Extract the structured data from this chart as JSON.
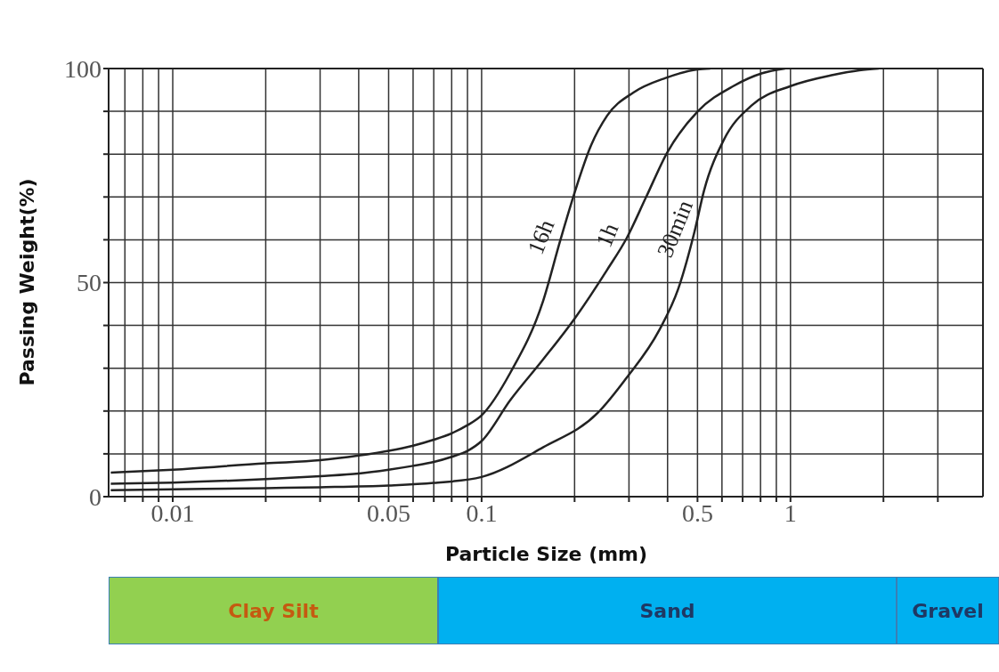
{
  "chart_data": [
    {
      "type": "line",
      "xlabel": "Particle Size (mm)",
      "ylabel": "Passing Weight(%)",
      "log": "x",
      "xlim": [
        0.0062,
        4.2
      ],
      "ylim": [
        0,
        100
      ],
      "xticks": [
        {
          "value": 0.007,
          "label": null
        },
        {
          "value": 0.008,
          "label": null
        },
        {
          "value": 0.009,
          "label": null
        },
        0.01,
        {
          "value": 0.02,
          "label": null
        },
        {
          "value": 0.03,
          "label": null
        },
        {
          "value": 0.04,
          "label": null
        },
        0.05,
        {
          "value": 0.06,
          "label": null
        },
        {
          "value": 0.07,
          "label": null
        },
        {
          "value": 0.08,
          "label": null
        },
        {
          "value": 0.09,
          "label": null
        },
        0.1,
        {
          "value": 0.2,
          "label": null
        },
        {
          "value": 0.3,
          "label": null
        },
        {
          "value": 0.4,
          "label": null
        },
        0.5,
        {
          "value": 0.6,
          "label": null
        },
        {
          "value": 0.7,
          "label": null
        },
        {
          "value": 0.8,
          "label": null
        },
        {
          "value": 0.9,
          "label": null
        },
        1,
        {
          "value": 2,
          "label": null
        },
        {
          "value": 3,
          "label": null
        }
      ],
      "yticks": [
        0,
        {
          "value": 10,
          "label": null
        },
        {
          "value": 20,
          "label": null
        },
        {
          "value": 30,
          "label": null
        },
        {
          "value": 40,
          "label": null
        },
        50,
        {
          "value": 60,
          "label": null
        },
        {
          "value": 70,
          "label": null
        },
        {
          "value": 80,
          "label": null
        },
        {
          "value": 90,
          "label": null
        },
        100
      ],
      "grid": true,
      "series": [
        {
          "name": "16h",
          "color": "#222222",
          "x": [
            0.0063,
            0.01,
            0.02,
            0.03,
            0.04,
            0.05,
            0.06,
            0.07,
            0.08,
            0.09,
            0.1,
            0.124,
            0.158,
            0.18,
            0.201,
            0.226,
            0.255,
            0.31,
            0.394,
            0.5,
            0.55
          ],
          "values": [
            5.6,
            6.3,
            7.8,
            8.5,
            9.6,
            10.7,
            11.9,
            13.3,
            14.8,
            16.7,
            19,
            29,
            45.6,
            60,
            71.5,
            82,
            89,
            94.4,
            97.8,
            99.8,
            100
          ]
        },
        {
          "name": "1h",
          "color": "#222222",
          "x": [
            0.0063,
            0.01,
            0.02,
            0.03,
            0.04,
            0.05,
            0.06,
            0.07,
            0.08,
            0.09,
            0.1,
            0.124,
            0.158,
            0.201,
            0.255,
            0.295,
            0.341,
            0.399,
            0.501,
            0.653,
            0.81,
            0.96
          ],
          "values": [
            3,
            3.3,
            4.1,
            4.8,
            5.4,
            6.3,
            7.2,
            8.1,
            9.3,
            10.7,
            13,
            22.6,
            32,
            41.8,
            53,
            60.4,
            70,
            80.4,
            90,
            95.9,
            98.9,
            100
          ]
        },
        {
          "name": "30min",
          "color": "#222222",
          "x": [
            0.0063,
            0.01,
            0.02,
            0.03,
            0.05,
            0.07,
            0.1,
            0.158,
            0.238,
            0.295,
            0.376,
            0.433,
            0.489,
            0.525,
            0.608,
            0.752,
            1.0,
            1.37,
            1.67,
            1.93
          ],
          "values": [
            1.5,
            1.7,
            2,
            2.2,
            2.6,
            3.2,
            4.6,
            11.5,
            19.6,
            27.8,
            38.9,
            48.5,
            61.9,
            71.5,
            83.3,
            91.5,
            95.9,
            98.5,
            99.6,
            100
          ]
        }
      ]
    },
    {
      "type": "other",
      "categories": [
        "Clay Silt",
        "Sand",
        "Gravel"
      ],
      "colors": [
        "#92d050",
        "#00b0f0",
        "#00b0f0"
      ]
    }
  ]
}
